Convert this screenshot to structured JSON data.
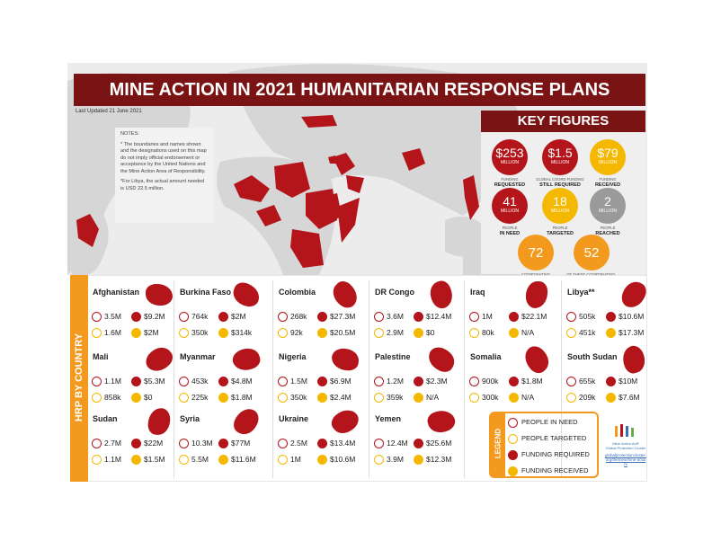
{
  "header": {
    "title": "MINE ACTION IN 2021 HUMANITARIAN RESPONSE PLANS",
    "last_updated": "Last Updated 21 June 2021"
  },
  "notes": {
    "heading": "NOTES:",
    "items": [
      "* The boundaries and names shown and the designations used on this map do not imply official endorsement or acceptance by the United Nations and the Mine Action Area of Responsibility.",
      "*For Libya, the actual amount needed is USD 22.5 million."
    ]
  },
  "key_figures": {
    "title": "KEY FIGURES",
    "items": [
      {
        "value": "$253",
        "unit": "MILLION",
        "sub": "FUNDING",
        "label": "REQUESTED",
        "color": "#b3151b"
      },
      {
        "value": "$1.5",
        "unit": "MILLION",
        "sub": "GLOBAL COORD FUNDING",
        "label": "STILL REQUIRED",
        "color": "#b3151b"
      },
      {
        "value": "$79",
        "unit": "MILLION",
        "sub": "FUNDING",
        "label": "RECEIVED",
        "color": "#f5b800"
      },
      {
        "value": "41",
        "unit": "MILLION",
        "sub": "PEOPLE",
        "label": "IN NEED",
        "color": "#b3151b"
      },
      {
        "value": "18",
        "unit": "MILLION",
        "sub": "PEOPLE",
        "label": "TARGETED",
        "color": "#f5b800"
      },
      {
        "value": "2",
        "unit": "MILLION",
        "sub": "PEOPLE",
        "label": "REACHED",
        "color": "#9a9a9a"
      },
      {
        "value": "72",
        "sub": "COORDINATING",
        "label": "PARTNERS",
        "color": "#f39a1e"
      },
      {
        "value": "52",
        "sub": "OF THESE COORDINATING,",
        "label": "NATIONAL PARTNERS",
        "color": "#f39a1e"
      }
    ]
  },
  "section_label": "HRP BY COUNTRY",
  "countries": [
    {
      "name": "Afghanistan",
      "people_in_need": "3.5M",
      "funding_required": "$9.2M",
      "people_targeted": "1.6M",
      "funding_received": "$2M"
    },
    {
      "name": "Burkina Faso",
      "people_in_need": "764k",
      "funding_required": "$2M",
      "people_targeted": "350k",
      "funding_received": "$314k"
    },
    {
      "name": "Colombia",
      "people_in_need": "268k",
      "funding_required": "$27.3M",
      "people_targeted": "92k",
      "funding_received": "$20.5M"
    },
    {
      "name": "DR Congo",
      "people_in_need": "3.6M",
      "funding_required": "$12.4M",
      "people_targeted": "2.9M",
      "funding_received": "$0"
    },
    {
      "name": "Iraq",
      "people_in_need": "1M",
      "funding_required": "$22.1M",
      "people_targeted": "80k",
      "funding_received": "N/A"
    },
    {
      "name": "Libya**",
      "people_in_need": "505k",
      "funding_required": "$10.6M",
      "people_targeted": "451k",
      "funding_received": "$17.3M"
    },
    {
      "name": "Mali",
      "people_in_need": "1.1M",
      "funding_required": "$5.3M",
      "people_targeted": "858k",
      "funding_received": "$0"
    },
    {
      "name": "Myanmar",
      "people_in_need": "453k",
      "funding_required": "$4.8M",
      "people_targeted": "225k",
      "funding_received": "$1.8M"
    },
    {
      "name": "Nigeria",
      "people_in_need": "1.5M",
      "funding_required": "$6.9M",
      "people_targeted": "350k",
      "funding_received": "$2.4M"
    },
    {
      "name": "Palestine",
      "people_in_need": "1.2M",
      "funding_required": "$2.3M",
      "people_targeted": "359k",
      "funding_received": "N/A"
    },
    {
      "name": "Somalia",
      "people_in_need": "900k",
      "funding_required": "$1.8M",
      "people_targeted": "300k",
      "funding_received": "N/A"
    },
    {
      "name": "South Sudan",
      "people_in_need": "655k",
      "funding_required": "$10M",
      "people_targeted": "209k",
      "funding_received": "$7.6M"
    },
    {
      "name": "Sudan",
      "people_in_need": "2.7M",
      "funding_required": "$22M",
      "people_targeted": "1.1M",
      "funding_received": "$1.5M"
    },
    {
      "name": "Syria",
      "people_in_need": "10.3M",
      "funding_required": "$77M",
      "people_targeted": "5.5M",
      "funding_received": "$11.6M"
    },
    {
      "name": "Ukraine",
      "people_in_need": "2.5M",
      "funding_required": "$13.4M",
      "people_targeted": "1M",
      "funding_received": "$10.6M"
    },
    {
      "name": "Yemen",
      "people_in_need": "12.4M",
      "funding_required": "$25.6M",
      "people_targeted": "3.9M",
      "funding_received": "$12.3M"
    }
  ],
  "legend": {
    "title": "LEGEND",
    "items": [
      "PEOPLE IN NEED",
      "PEOPLE TARGETED",
      "FUNDING REQUIRED",
      "FUNDING RECEIVED"
    ]
  },
  "logo": {
    "name": "Mine Action AoR",
    "org": "Global Protection Cluster",
    "url": "globalprotectioncluster.org/themes/mine-action/"
  }
}
